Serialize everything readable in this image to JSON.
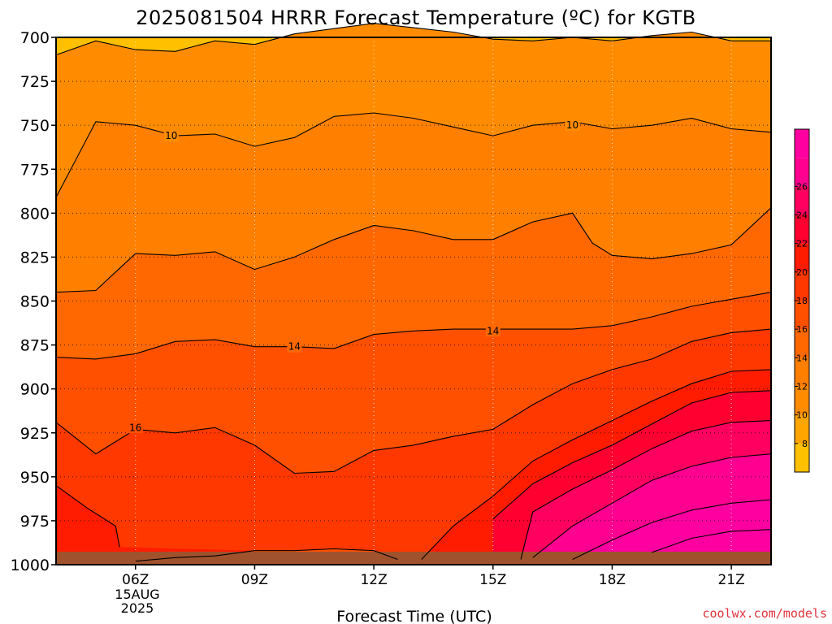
{
  "chart_data": {
    "type": "contour",
    "title": "2025081504 HRRR Forecast Temperature (ºC) for KGTB",
    "xlabel": "Forecast Time (UTC)",
    "ylabel": "",
    "x_ticks": [
      "06Z",
      "09Z",
      "12Z",
      "15Z",
      "18Z",
      "21Z"
    ],
    "x_date": [
      "15AUG",
      "2025"
    ],
    "x_range_hours_utc": [
      4,
      22
    ],
    "y_ticks": [
      700,
      725,
      750,
      775,
      800,
      825,
      850,
      875,
      900,
      925,
      950,
      975,
      1000
    ],
    "y_range_hpa": [
      700,
      1000
    ],
    "grid": "dotted",
    "colorbar": {
      "position": "right",
      "levels": [
        6,
        8,
        10,
        12,
        14,
        16,
        18,
        20,
        22,
        24,
        26,
        28
      ],
      "tick_labels": [
        "8",
        "10",
        "12",
        "14",
        "16",
        "18",
        "20",
        "22",
        "24",
        "26"
      ],
      "colors": [
        "#ffc000",
        "#ffa500",
        "#ff8c00",
        "#ff7f00",
        "#ff6800",
        "#ff5000",
        "#ff3800",
        "#ff1c00",
        "#ff0030",
        "#ff0060",
        "#ff0090",
        "#ff00a0"
      ]
    },
    "ground_color": "#a0522d",
    "contour_labels": [
      "10",
      "10",
      "14",
      "14",
      "16"
    ],
    "contours": [
      {
        "level": 8,
        "label": "",
        "points": [
          [
            4.0,
            710
          ],
          [
            5.0,
            702
          ],
          [
            6.0,
            707
          ],
          [
            7.0,
            708
          ],
          [
            8.0,
            702
          ],
          [
            9.0,
            704
          ],
          [
            10.0,
            698
          ],
          [
            12.0,
            692
          ],
          [
            14.0,
            697
          ],
          [
            15.0,
            701
          ],
          [
            16.0,
            702
          ],
          [
            17.0,
            700
          ],
          [
            18.0,
            702
          ],
          [
            19.0,
            699
          ],
          [
            20.0,
            697
          ],
          [
            21.0,
            702
          ],
          [
            22.0,
            702
          ]
        ]
      },
      {
        "level": 10,
        "label": "10",
        "label_at": [
          [
            6.9,
            756
          ],
          [
            17.0,
            750
          ]
        ],
        "points": [
          [
            4.0,
            791
          ],
          [
            5.0,
            748
          ],
          [
            6.0,
            750
          ],
          [
            7.0,
            756
          ],
          [
            8.0,
            755
          ],
          [
            9.0,
            762
          ],
          [
            10.0,
            757
          ],
          [
            11.0,
            745
          ],
          [
            12.0,
            743
          ],
          [
            13.0,
            746
          ],
          [
            14.0,
            751
          ],
          [
            15.0,
            756
          ],
          [
            16.0,
            750
          ],
          [
            17.0,
            748
          ],
          [
            18.0,
            752
          ],
          [
            19.0,
            750
          ],
          [
            20.0,
            746
          ],
          [
            21.0,
            752
          ],
          [
            22.0,
            754
          ]
        ]
      },
      {
        "level": 12,
        "label": "",
        "points": [
          [
            4.0,
            845
          ],
          [
            5.0,
            844
          ],
          [
            6.0,
            823
          ],
          [
            7.0,
            824
          ],
          [
            8.0,
            822
          ],
          [
            9.0,
            832
          ],
          [
            10.0,
            825
          ],
          [
            11.0,
            815
          ],
          [
            12.0,
            807
          ],
          [
            13.0,
            810
          ],
          [
            14.0,
            815
          ],
          [
            15.0,
            815
          ],
          [
            16.0,
            805
          ],
          [
            17.0,
            800
          ],
          [
            17.5,
            817
          ],
          [
            18.0,
            824
          ],
          [
            19.0,
            826
          ],
          [
            20.0,
            823
          ],
          [
            21.0,
            818
          ],
          [
            22.0,
            797
          ]
        ]
      },
      {
        "level": 14,
        "label": "14",
        "label_at": [
          [
            10.0,
            876
          ],
          [
            15.0,
            867
          ]
        ],
        "points": [
          [
            4.0,
            882
          ],
          [
            5.0,
            883
          ],
          [
            6.0,
            880
          ],
          [
            7.0,
            873
          ],
          [
            8.0,
            872
          ],
          [
            9.0,
            876
          ],
          [
            10.0,
            876
          ],
          [
            11.0,
            877
          ],
          [
            12.0,
            869
          ],
          [
            13.0,
            867
          ],
          [
            14.0,
            866
          ],
          [
            15.0,
            866
          ],
          [
            16.0,
            866
          ],
          [
            17.0,
            866
          ],
          [
            18.0,
            864
          ],
          [
            19.0,
            859
          ],
          [
            20.0,
            853
          ],
          [
            21.0,
            849
          ],
          [
            22.0,
            845
          ]
        ]
      },
      {
        "level": 16,
        "label": "16",
        "label_at": [
          [
            6.0,
            922
          ]
        ],
        "points": [
          [
            4.0,
            919
          ],
          [
            4.5,
            928
          ],
          [
            5.0,
            937
          ],
          [
            5.5,
            930
          ],
          [
            6.0,
            923
          ],
          [
            7.0,
            925
          ],
          [
            8.0,
            922
          ],
          [
            9.0,
            932
          ],
          [
            10.0,
            948
          ],
          [
            11.0,
            947
          ],
          [
            12.0,
            935
          ],
          [
            13.0,
            932
          ],
          [
            14.0,
            927
          ],
          [
            15.0,
            923
          ],
          [
            16.0,
            909
          ],
          [
            17.0,
            897
          ],
          [
            18.0,
            889
          ],
          [
            19.0,
            883
          ],
          [
            20.0,
            873
          ],
          [
            21.0,
            868
          ],
          [
            22.0,
            866
          ]
        ]
      },
      {
        "level": 18,
        "label": "",
        "points": [
          [
            4.0,
            955
          ],
          [
            4.8,
            968
          ],
          [
            5.5,
            978
          ],
          [
            5.6,
            990
          ]
        ]
      },
      {
        "level": 18,
        "label": "",
        "points": [
          [
            13.2,
            997
          ],
          [
            14.0,
            978
          ],
          [
            15.0,
            961
          ],
          [
            16.0,
            941
          ],
          [
            17.0,
            929
          ],
          [
            18.0,
            918
          ],
          [
            19.0,
            907
          ],
          [
            20.0,
            897
          ],
          [
            21.0,
            890
          ],
          [
            22.0,
            889
          ]
        ]
      },
      {
        "level": 20,
        "label": "",
        "points": [
          [
            15.0,
            974
          ],
          [
            16.0,
            954
          ],
          [
            17.0,
            942
          ],
          [
            18.0,
            932
          ],
          [
            19.0,
            920
          ],
          [
            20.0,
            908
          ],
          [
            21.0,
            902
          ],
          [
            22.0,
            901
          ]
        ]
      },
      {
        "level": 22,
        "label": "",
        "points": [
          [
            15.7,
            997
          ],
          [
            16.0,
            970
          ],
          [
            17.0,
            957
          ],
          [
            18.0,
            946
          ],
          [
            19.0,
            934
          ],
          [
            20.0,
            924
          ],
          [
            21.0,
            919
          ],
          [
            22.0,
            918
          ]
        ]
      },
      {
        "level": 24,
        "label": "",
        "points": [
          [
            16.0,
            996
          ],
          [
            17.0,
            978
          ],
          [
            18.0,
            965
          ],
          [
            19.0,
            952
          ],
          [
            20.0,
            944
          ],
          [
            21.0,
            939
          ],
          [
            22.0,
            937
          ]
        ]
      },
      {
        "level": 26,
        "label": "",
        "points": [
          [
            17.0,
            997
          ],
          [
            18.0,
            986
          ],
          [
            19.0,
            976
          ],
          [
            20.0,
            969
          ],
          [
            21.0,
            965
          ],
          [
            22.0,
            963
          ]
        ]
      },
      {
        "level": 28,
        "label": "",
        "points": [
          [
            19.0,
            993
          ],
          [
            20.0,
            985
          ],
          [
            21.0,
            981
          ],
          [
            22.0,
            980
          ]
        ]
      },
      {
        "level": 16,
        "label": "",
        "points": [
          [
            6.0,
            998
          ],
          [
            7.0,
            996
          ],
          [
            8.0,
            995
          ],
          [
            9.0,
            992
          ],
          [
            10.0,
            992
          ],
          [
            11.0,
            991
          ],
          [
            12.0,
            992
          ],
          [
            12.6,
            997
          ]
        ]
      }
    ]
  },
  "credit": "coolwx.com/models"
}
